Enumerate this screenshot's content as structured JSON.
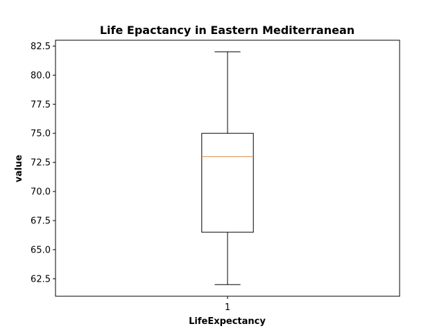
{
  "chart_data": {
    "type": "box",
    "title": "Life Epactancy in Eastern Mediterranean",
    "xlabel": "LifeExpectancy",
    "ylabel": "value",
    "categories": [
      "1"
    ],
    "ylim": [
      61.0,
      83.0
    ],
    "yticks": [
      62.5,
      65.0,
      67.5,
      70.0,
      72.5,
      75.0,
      77.5,
      80.0,
      82.5
    ],
    "ytick_labels": [
      "62.5",
      "65.0",
      "67.5",
      "70.0",
      "72.5",
      "75.0",
      "77.5",
      "80.0",
      "82.5"
    ],
    "boxes": [
      {
        "category": "1",
        "whisker_low": 62.0,
        "q1": 66.5,
        "median": 73.0,
        "q3": 75.0,
        "whisker_high": 82.0
      }
    ],
    "grid": false,
    "colors": {
      "box": "#000000",
      "median": "#ff7f0e"
    }
  }
}
